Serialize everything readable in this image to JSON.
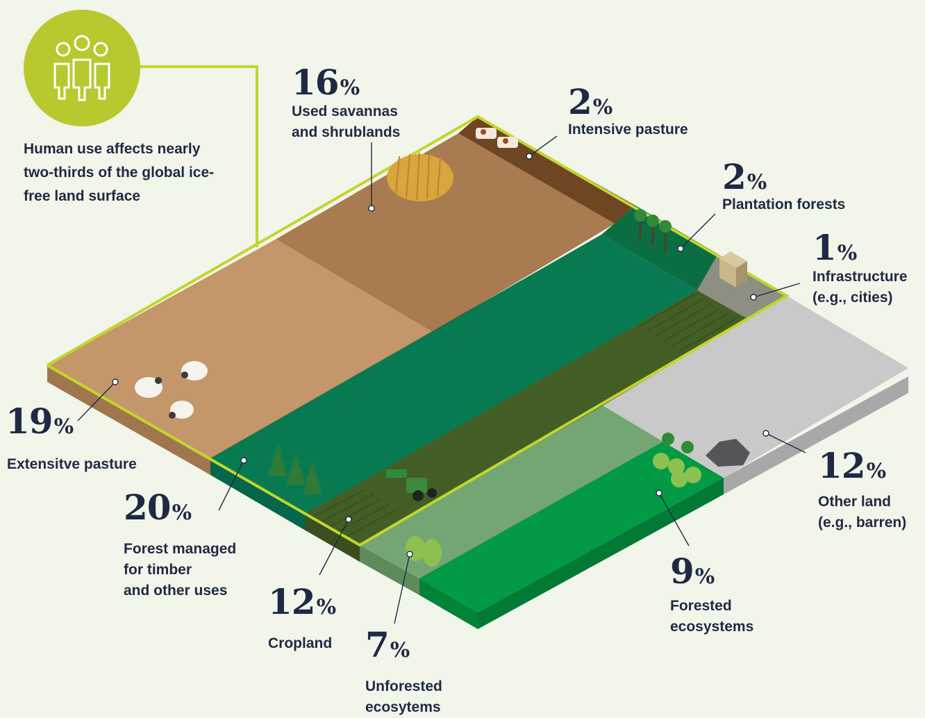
{
  "intro": "Human use affects nearly two-thirds of the global ice-free land surface",
  "icons": {
    "people": "people-group-icon"
  },
  "colors": {
    "accent": "#c2d62c",
    "text": "#1e2a44",
    "background": "#f2f5e9",
    "extensive_pasture": "#c3976a",
    "savannas": "#a87b50",
    "intensive_pasture": "#6f4623",
    "plantation": "#0b6e43",
    "forest_managed": "#087a52",
    "cropland": "#425e25",
    "infrastructure": "#8d8f83",
    "other_land": "#c9c9c9",
    "unforested": "#74a673",
    "forested": "#029a44"
  },
  "segments": [
    {
      "id": "extensive-pasture",
      "value": 19,
      "sign": "%",
      "label": "Extensitve pasture"
    },
    {
      "id": "forest-managed",
      "value": 20,
      "sign": "%",
      "label": "Forest managed\nfor timber\nand other uses"
    },
    {
      "id": "cropland",
      "value": 12,
      "sign": "%",
      "label": "Cropland"
    },
    {
      "id": "unforested",
      "value": 7,
      "sign": "%",
      "label": "Unforested\necosytems"
    },
    {
      "id": "forested",
      "value": 9,
      "sign": "%",
      "label": "Forested\necosystems"
    },
    {
      "id": "other-land",
      "value": 12,
      "sign": "%",
      "label": "Other land\n(e.g., barren)"
    },
    {
      "id": "infrastructure",
      "value": 1,
      "sign": "%",
      "label": "Infrastructure\n(e.g., cities)"
    },
    {
      "id": "plantation",
      "value": 2,
      "sign": "%",
      "label": "Plantation forests"
    },
    {
      "id": "intensive-pasture",
      "value": 2,
      "sign": "%",
      "label": "Intensive pasture"
    },
    {
      "id": "savannas",
      "value": 16,
      "sign": "%",
      "label": "Used savannas\nand shrublands"
    }
  ]
}
